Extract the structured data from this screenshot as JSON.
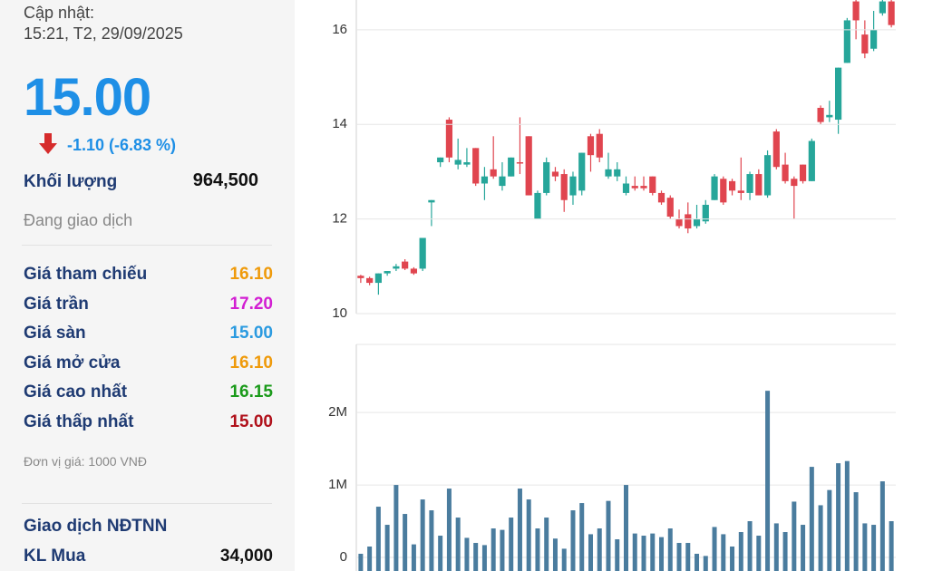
{
  "sidebar": {
    "updated_label": "Cập nhật:",
    "updated_time": "15:21, T2, 29/09/2025",
    "price": "15.00",
    "change": "-1.10 (-6.83 %)",
    "volume_label": "Khối lượng",
    "volume": "964,500",
    "status": "Đang giao dịch",
    "rows": [
      {
        "label": "Giá tham chiếu",
        "value": "16.10",
        "color": "#ef9a0a"
      },
      {
        "label": "Giá trần",
        "value": "17.20",
        "color": "#d21ed2"
      },
      {
        "label": "Giá sàn",
        "value": "15.00",
        "color": "#2a9ae0"
      },
      {
        "label": "Giá mở cửa",
        "value": "16.10",
        "color": "#ef9a0a"
      },
      {
        "label": "Giá cao nhất",
        "value": "16.15",
        "color": "#1a9a1a"
      },
      {
        "label": "Giá thấp nhất",
        "value": "15.00",
        "color": "#b0101a"
      }
    ],
    "unit_note": "Đơn vị giá: 1000 VNĐ",
    "foreign_title": "Giao dịch NĐTNN",
    "foreign_rows": [
      {
        "label": "KL Mua",
        "value": "34,000"
      }
    ]
  },
  "chart_data": [
    {
      "type": "candlestick",
      "up_color": "#26a69a",
      "down_color": "#e0454f",
      "open": [
        10.8,
        10.75,
        10.65,
        10.85,
        10.95,
        11.1,
        10.95,
        10.95,
        12.35,
        13.2,
        14.1,
        13.15,
        13.15,
        13.5,
        12.75,
        13.05,
        12.7,
        12.9,
        13.2,
        13.75,
        12.0,
        12.55,
        13.0,
        12.95,
        12.5,
        12.6,
        13.75,
        13.8,
        12.9,
        12.9,
        12.55,
        12.7,
        12.7,
        12.9,
        12.55,
        12.45,
        12.0,
        12.1,
        11.85,
        11.95,
        12.4,
        12.85,
        12.8,
        12.6,
        12.55,
        12.95,
        12.5,
        13.85,
        13.15,
        12.85,
        13.15,
        12.8,
        14.35,
        14.15,
        14.1,
        15.3,
        16.6,
        15.9,
        15.6,
        16.35,
        16.6
      ],
      "high": [
        10.82,
        10.78,
        10.85,
        10.9,
        11.05,
        11.15,
        10.98,
        11.6,
        12.4,
        13.3,
        14.15,
        13.7,
        13.5,
        13.5,
        13.1,
        13.75,
        13.2,
        13.3,
        14.15,
        13.75,
        12.6,
        13.3,
        13.1,
        13.05,
        13.0,
        13.4,
        13.8,
        13.9,
        13.4,
        13.2,
        12.9,
        12.9,
        12.9,
        12.9,
        12.6,
        12.5,
        12.2,
        12.35,
        12.3,
        12.4,
        12.95,
        12.9,
        12.85,
        13.3,
        13.0,
        13.05,
        13.45,
        13.9,
        13.4,
        12.9,
        13.15,
        13.7,
        14.4,
        14.5,
        15.2,
        16.25,
        16.7,
        16.2,
        16.4,
        16.7,
        16.8
      ],
      "low": [
        10.65,
        10.6,
        10.4,
        10.8,
        10.9,
        10.92,
        10.82,
        10.9,
        11.85,
        13.1,
        13.2,
        13.05,
        13.1,
        12.7,
        12.4,
        12.85,
        12.6,
        12.9,
        12.95,
        12.5,
        12.0,
        12.5,
        12.8,
        12.15,
        12.3,
        12.5,
        13.0,
        13.2,
        12.85,
        12.8,
        12.5,
        12.6,
        12.6,
        12.5,
        12.3,
        12.0,
        11.8,
        11.7,
        11.8,
        11.9,
        12.4,
        12.3,
        12.5,
        12.4,
        12.4,
        12.5,
        12.45,
        13.05,
        12.75,
        12.0,
        12.75,
        12.8,
        14.0,
        14.05,
        13.8,
        15.3,
        15.8,
        15.4,
        15.55,
        16.3,
        16.05
      ],
      "close": [
        10.75,
        10.65,
        10.85,
        10.9,
        11.0,
        10.95,
        10.85,
        11.6,
        12.4,
        13.3,
        13.3,
        13.25,
        13.2,
        12.75,
        12.9,
        12.9,
        12.9,
        13.3,
        13.18,
        12.5,
        12.55,
        13.2,
        12.9,
        12.4,
        12.9,
        13.4,
        13.35,
        13.3,
        13.05,
        13.05,
        12.75,
        12.65,
        12.65,
        12.55,
        12.35,
        12.05,
        11.85,
        11.8,
        12.0,
        12.3,
        12.9,
        12.35,
        12.6,
        12.55,
        12.95,
        12.5,
        13.35,
        13.1,
        12.8,
        12.7,
        12.8,
        13.65,
        14.05,
        14.2,
        15.2,
        16.2,
        16.2,
        15.5,
        16.0,
        16.6,
        16.1
      ],
      "ylim": [
        10,
        16.63
      ],
      "yticks": [
        10,
        12,
        14,
        16
      ],
      "grid": true
    },
    {
      "type": "bar",
      "color": "#4a7c9e",
      "values": [
        50000,
        150000,
        700000,
        450000,
        1000000,
        600000,
        180000,
        800000,
        650000,
        300000,
        950000,
        550000,
        270000,
        200000,
        170000,
        400000,
        380000,
        550000,
        950000,
        800000,
        400000,
        550000,
        260000,
        120000,
        650000,
        750000,
        320000,
        400000,
        780000,
        250000,
        1000000,
        330000,
        300000,
        330000,
        280000,
        400000,
        200000,
        200000,
        50000,
        20000,
        420000,
        320000,
        150000,
        350000,
        500000,
        300000,
        2300000,
        470000,
        350000,
        770000,
        450000,
        1250000,
        720000,
        930000,
        1300000,
        1330000,
        900000,
        470000,
        450000,
        1050000,
        500000
      ],
      "ylim": [
        0,
        2940000
      ],
      "yticks": [
        0,
        {
          "value": 1000000,
          "label": "1M"
        },
        {
          "value": 2000000,
          "label": "2M"
        }
      ],
      "grid": true
    }
  ]
}
